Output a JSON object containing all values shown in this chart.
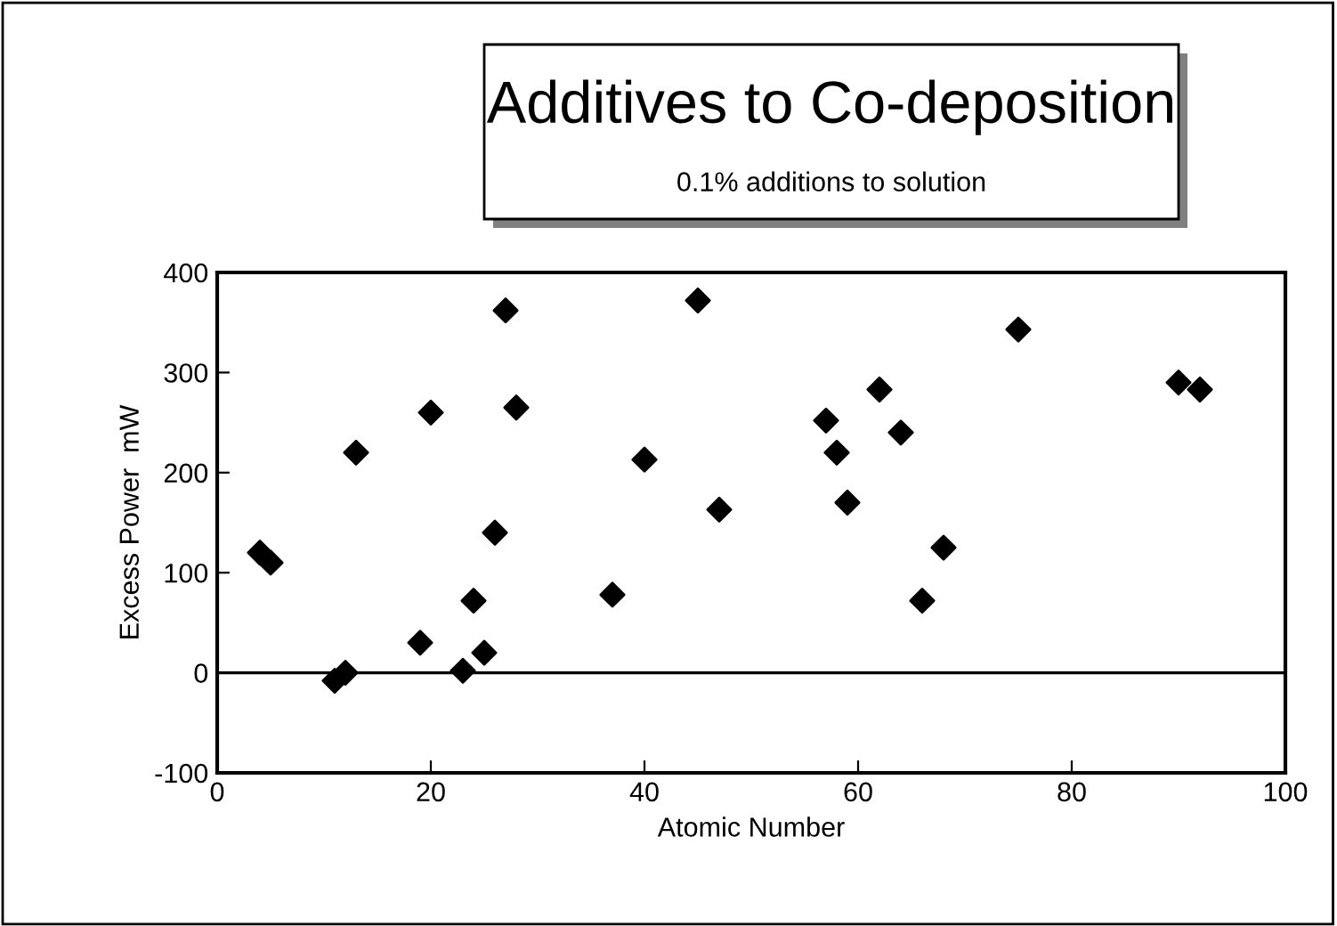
{
  "chart_data": {
    "type": "scatter",
    "title": "Additives to Co-deposition",
    "subtitle": "0.1% additions to solution",
    "xlabel": "Atomic Number",
    "ylabel": "Excess Power  mW",
    "x": [
      4,
      5,
      11,
      12,
      13,
      19,
      20,
      23,
      24,
      25,
      26,
      27,
      28,
      37,
      40,
      45,
      47,
      57,
      58,
      59,
      62,
      64,
      66,
      68,
      75,
      90,
      92
    ],
    "series": [
      {
        "color": "#000000",
        "values": [
          120,
          110,
          -8,
          0,
          220,
          30,
          260,
          2,
          72,
          20,
          140,
          362,
          265,
          78,
          213,
          372,
          163,
          252,
          220,
          170,
          283,
          240,
          72,
          125,
          343,
          290,
          283
        ]
      }
    ],
    "xlim": [
      0,
      100
    ],
    "xticks": [
      0,
      20,
      40,
      60,
      80,
      100
    ],
    "ylim": [
      -100,
      400
    ],
    "yticks": [
      -100,
      0,
      100,
      200,
      300,
      400
    ],
    "ref_lines": [
      {
        "axis": "y",
        "value": 0,
        "color": "#000000"
      }
    ],
    "marker": "diamond",
    "grid": false,
    "legend": false
  }
}
